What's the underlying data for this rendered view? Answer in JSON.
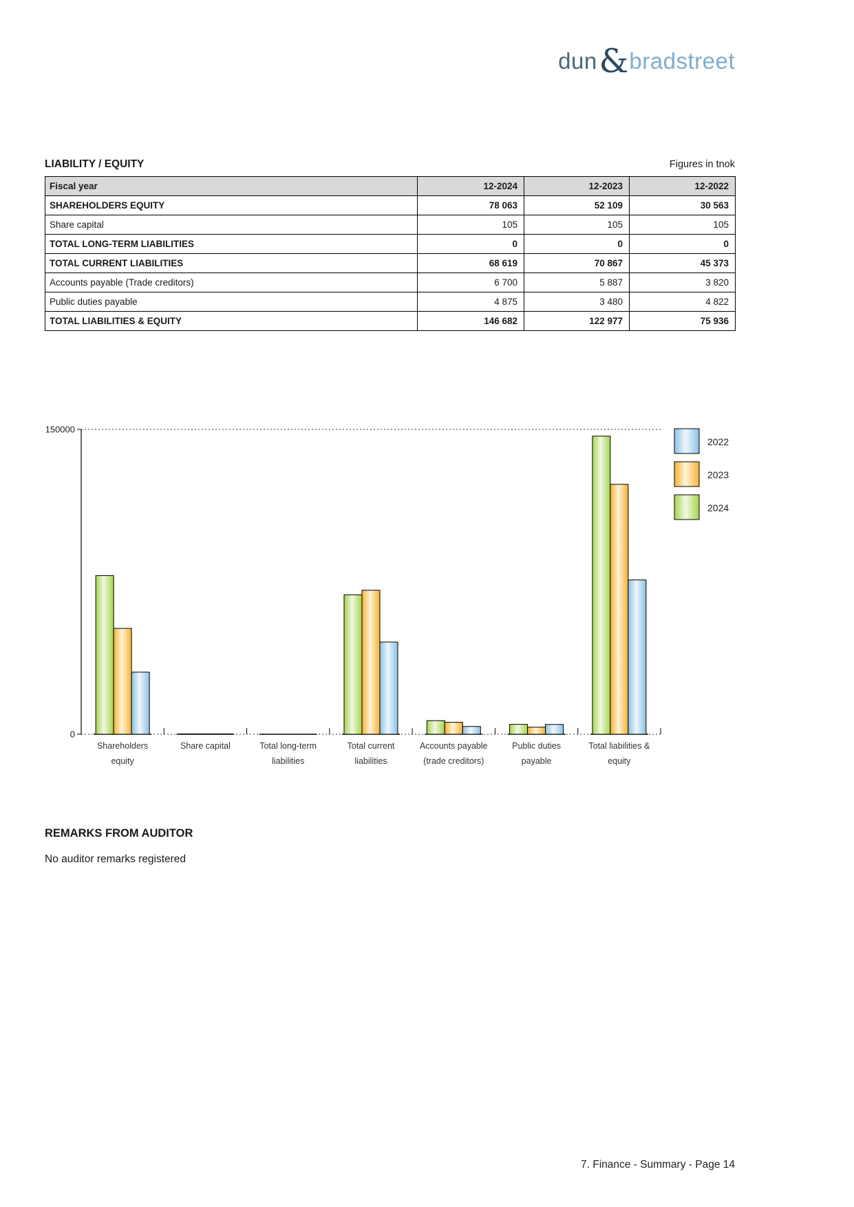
{
  "logo": {
    "part1": "dun",
    "amp": "&",
    "part2": "bradstreet"
  },
  "header": {
    "section_title": "LIABILITY / EQUITY",
    "unit_note": "Figures in tnok"
  },
  "table": {
    "header": [
      "Fiscal year",
      "12-2024",
      "12-2023",
      "12-2022"
    ],
    "rows": [
      {
        "label": "SHAREHOLDERS EQUITY",
        "values": [
          "78 063",
          "52 109",
          "30 563"
        ],
        "bold": true
      },
      {
        "label": "Share capital",
        "values": [
          "105",
          "105",
          "105"
        ],
        "bold": false
      },
      {
        "label": "TOTAL LONG-TERM LIABILITIES",
        "values": [
          "0",
          "0",
          "0"
        ],
        "bold": true
      },
      {
        "label": "TOTAL CURRENT LIABILITIES",
        "values": [
          "68 619",
          "70 867",
          "45 373"
        ],
        "bold": true
      },
      {
        "label": "Accounts payable (Trade creditors)",
        "values": [
          "6 700",
          "5 887",
          "3 820"
        ],
        "bold": false
      },
      {
        "label": "Public duties payable",
        "values": [
          "4 875",
          "3 480",
          "4 822"
        ],
        "bold": false
      },
      {
        "label": "TOTAL LIABILITIES & EQUITY",
        "values": [
          "146 682",
          "122 977",
          "75 936"
        ],
        "bold": true
      }
    ]
  },
  "chart_data": {
    "type": "bar",
    "title": "",
    "xlabel": "",
    "ylabel": "",
    "ylim": [
      0,
      150000
    ],
    "grid": "top-dotted-line-only",
    "legend_position": "top-right",
    "yticks": [
      {
        "value": 150000,
        "label": "150000"
      },
      {
        "value": 0,
        "label": "0"
      }
    ],
    "categories": [
      {
        "label": "Shareholders equity",
        "lines": [
          "Shareholders",
          "equity"
        ]
      },
      {
        "label": "Share capital",
        "lines": [
          "Share capital"
        ]
      },
      {
        "label": "Total long-term liabilities",
        "lines": [
          "Total long-term",
          "liabilities"
        ]
      },
      {
        "label": "Total current liabilities",
        "lines": [
          "Total current",
          "liabilities"
        ]
      },
      {
        "label": "Accounts payable (trade creditors)",
        "lines": [
          "Accounts payable",
          "(trade creditors)"
        ]
      },
      {
        "label": "Public duties payable",
        "lines": [
          "Public duties",
          "payable"
        ]
      },
      {
        "label": "Total liabilities & equity",
        "lines": [
          "Total liabilities &",
          "equity"
        ]
      }
    ],
    "series": [
      {
        "name": "2022",
        "color": "#8CC1E3",
        "light": "#EEF7FD",
        "values": [
          30563,
          105,
          0,
          45373,
          3820,
          4822,
          75936
        ]
      },
      {
        "name": "2023",
        "color": "#F6B231",
        "light": "#FEF3D8",
        "values": [
          52109,
          105,
          0,
          70867,
          5887,
          3480,
          122977
        ]
      },
      {
        "name": "2024",
        "color": "#A6D34D",
        "light": "#F1F8E2",
        "values": [
          78063,
          105,
          0,
          68619,
          6700,
          4875,
          146682
        ]
      }
    ],
    "draw_order": [
      "2024",
      "2023",
      "2022"
    ],
    "legend": [
      "2022",
      "2023",
      "2024"
    ]
  },
  "remarks": {
    "title": "REMARKS FROM AUDITOR",
    "text": "No auditor remarks registered"
  },
  "footer": {
    "text": "7. Finance - Summary - Page 14"
  }
}
